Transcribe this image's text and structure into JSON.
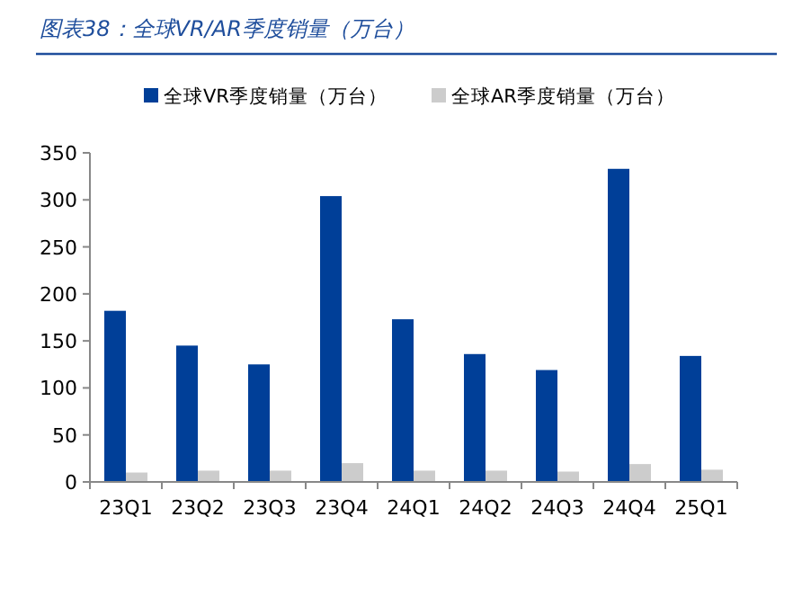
{
  "chart_data": {
    "type": "bar",
    "title": "图表38：全球VR/AR季度销量（万台）",
    "categories": [
      "23Q1",
      "23Q2",
      "23Q3",
      "23Q4",
      "24Q1",
      "24Q2",
      "24Q3",
      "24Q4",
      "25Q1"
    ],
    "series": [
      {
        "name": "全球VR季度销量（万台）",
        "color": "#003f98",
        "values": [
          182,
          145,
          125,
          304,
          173,
          136,
          119,
          333,
          134
        ]
      },
      {
        "name": "全球AR季度销量（万台）",
        "color": "#cccccc",
        "values": [
          10,
          12,
          12,
          20,
          12,
          12,
          11,
          19,
          13
        ]
      }
    ],
    "ylim": [
      0,
      350
    ],
    "yticks": [
      0,
      50,
      100,
      150,
      200,
      250,
      300,
      350
    ],
    "grid": false,
    "legend": "top"
  }
}
